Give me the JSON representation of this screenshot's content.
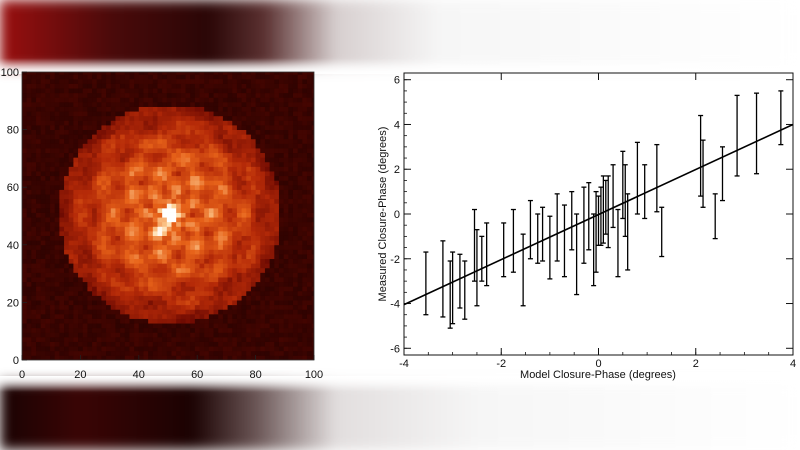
{
  "chart_data": [
    {
      "type": "heatmap",
      "title": "",
      "xlabel": "",
      "ylabel": "",
      "xlim": [
        0,
        100
      ],
      "ylim": [
        0,
        100
      ],
      "x_ticks": [
        "0",
        "20",
        "40",
        "60",
        "80",
        "100"
      ],
      "y_ticks": [
        "0",
        "20",
        "40",
        "60",
        "80",
        "100"
      ],
      "colormap": [
        "#1a0000",
        "#6e0a02",
        "#b52a08",
        "#e8641a",
        "#ffd8a0",
        "#ffffff"
      ],
      "peak": [
        50,
        50
      ],
      "secondary_peak": [
        47,
        44
      ],
      "speckle_radius": 38,
      "grid": false
    },
    {
      "type": "scatter",
      "title": "",
      "xlabel": "Model Closure-Phase (degrees)",
      "ylabel": "Measured Closure-Phase (degrees)",
      "xlim": [
        -4,
        4
      ],
      "ylim": [
        -6.3,
        6.3
      ],
      "x_ticks": [
        "-4",
        "-2",
        "0",
        "2",
        "4"
      ],
      "y_ticks": [
        "-6",
        "-4",
        "-2",
        "0",
        "2",
        "4",
        "6"
      ],
      "grid": false,
      "fit_line": {
        "x": [
          -4,
          4
        ],
        "y": [
          -4.05,
          4.0
        ]
      },
      "points": [
        {
          "x": -3.55,
          "y": -3.1,
          "err": 1.4
        },
        {
          "x": -3.2,
          "y": -2.9,
          "err": 1.7
        },
        {
          "x": -3.05,
          "y": -3.6,
          "err": 1.5
        },
        {
          "x": -3.0,
          "y": -3.3,
          "err": 1.6
        },
        {
          "x": -2.85,
          "y": -3.0,
          "err": 1.2
        },
        {
          "x": -2.75,
          "y": -3.4,
          "err": 1.3
        },
        {
          "x": -2.55,
          "y": -1.4,
          "err": 1.6
        },
        {
          "x": -2.5,
          "y": -2.4,
          "err": 1.7
        },
        {
          "x": -2.4,
          "y": -2.0,
          "err": 1.0
        },
        {
          "x": -2.3,
          "y": -1.8,
          "err": 1.4
        },
        {
          "x": -1.95,
          "y": -1.6,
          "err": 1.2
        },
        {
          "x": -1.75,
          "y": -1.2,
          "err": 1.4
        },
        {
          "x": -1.55,
          "y": -2.5,
          "err": 1.6
        },
        {
          "x": -1.4,
          "y": -0.7,
          "err": 1.3
        },
        {
          "x": -1.25,
          "y": -1.1,
          "err": 1.1
        },
        {
          "x": -1.15,
          "y": -0.9,
          "err": 1.2
        },
        {
          "x": -1.0,
          "y": -1.5,
          "err": 1.4
        },
        {
          "x": -0.85,
          "y": -0.6,
          "err": 1.5
        },
        {
          "x": -0.7,
          "y": -1.2,
          "err": 1.6
        },
        {
          "x": -0.55,
          "y": -0.3,
          "err": 1.3
        },
        {
          "x": -0.45,
          "y": -1.8,
          "err": 1.8
        },
        {
          "x": -0.3,
          "y": -0.5,
          "err": 1.7
        },
        {
          "x": -0.2,
          "y": -0.1,
          "err": 1.5
        },
        {
          "x": -0.1,
          "y": -1.6,
          "err": 1.6
        },
        {
          "x": -0.05,
          "y": -0.8,
          "err": 1.8
        },
        {
          "x": 0.0,
          "y": -0.3,
          "err": 1.1
        },
        {
          "x": 0.05,
          "y": -0.1,
          "err": 1.3
        },
        {
          "x": 0.1,
          "y": 0.2,
          "err": 1.5
        },
        {
          "x": 0.15,
          "y": 0.3,
          "err": 1.2
        },
        {
          "x": 0.2,
          "y": 0.1,
          "err": 1.6
        },
        {
          "x": 0.3,
          "y": 0.8,
          "err": 1.4
        },
        {
          "x": 0.4,
          "y": -1.3,
          "err": 1.5
        },
        {
          "x": 0.5,
          "y": 1.3,
          "err": 1.5
        },
        {
          "x": 0.55,
          "y": 0.6,
          "err": 1.6
        },
        {
          "x": 0.6,
          "y": -0.8,
          "err": 1.7
        },
        {
          "x": 0.8,
          "y": 1.6,
          "err": 1.6
        },
        {
          "x": 0.95,
          "y": 1.0,
          "err": 1.2
        },
        {
          "x": 1.2,
          "y": 1.6,
          "err": 1.5
        },
        {
          "x": 1.3,
          "y": -0.8,
          "err": 1.1
        },
        {
          "x": 2.1,
          "y": 2.6,
          "err": 1.8
        },
        {
          "x": 2.15,
          "y": 1.8,
          "err": 1.5
        },
        {
          "x": 2.4,
          "y": -0.1,
          "err": 1.0
        },
        {
          "x": 2.55,
          "y": 1.8,
          "err": 1.2
        },
        {
          "x": 2.85,
          "y": 3.5,
          "err": 1.8
        },
        {
          "x": 3.25,
          "y": 3.6,
          "err": 1.8
        },
        {
          "x": 3.75,
          "y": 4.3,
          "err": 1.2
        }
      ]
    }
  ]
}
